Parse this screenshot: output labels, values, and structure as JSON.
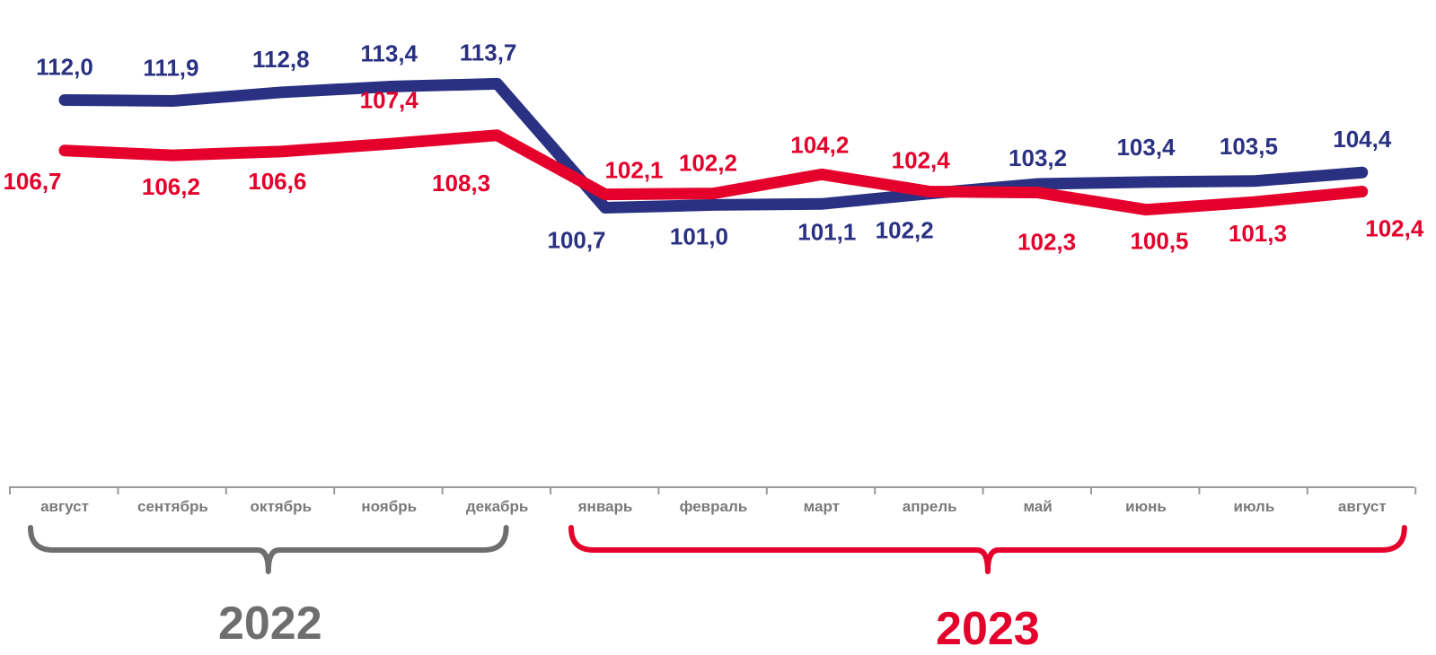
{
  "chart_data": {
    "type": "line",
    "categories": [
      "август",
      "сентябрь",
      "октябрь",
      "ноябрь",
      "декабрь",
      "январь",
      "февраль",
      "март",
      "апрель",
      "май",
      "июнь",
      "июль",
      "август"
    ],
    "series": [
      {
        "color": "#2a3182",
        "values": [
          112.0,
          111.9,
          112.8,
          113.4,
          113.7,
          100.7,
          101.0,
          101.1,
          102.2,
          103.2,
          103.4,
          103.5,
          104.4
        ],
        "labels": [
          "112,0",
          "111,9",
          "112,8",
          "113,4",
          "113,7",
          "100,7",
          "101,0",
          "101,1",
          "102,2",
          "103,2",
          "103,4",
          "103,5",
          "104,4"
        ]
      },
      {
        "color": "#e4002b",
        "values": [
          106.7,
          106.2,
          106.6,
          107.4,
          108.3,
          102.1,
          102.2,
          104.2,
          102.4,
          102.3,
          100.5,
          101.3,
          102.4
        ],
        "labels": [
          "106,7",
          "106,2",
          "106,6",
          "107,4",
          "108,3",
          "102,1",
          "102,2",
          "104,2",
          "102,4",
          "102,3",
          "100,5",
          "101,3",
          "102,4"
        ]
      }
    ],
    "groups": [
      {
        "label": "2022",
        "color": "#6e6e6e",
        "from": 0,
        "to": 4
      },
      {
        "label": "2023",
        "color": "#e4002b",
        "from": 5,
        "to": 12
      }
    ],
    "grid": false,
    "legend": "none"
  }
}
